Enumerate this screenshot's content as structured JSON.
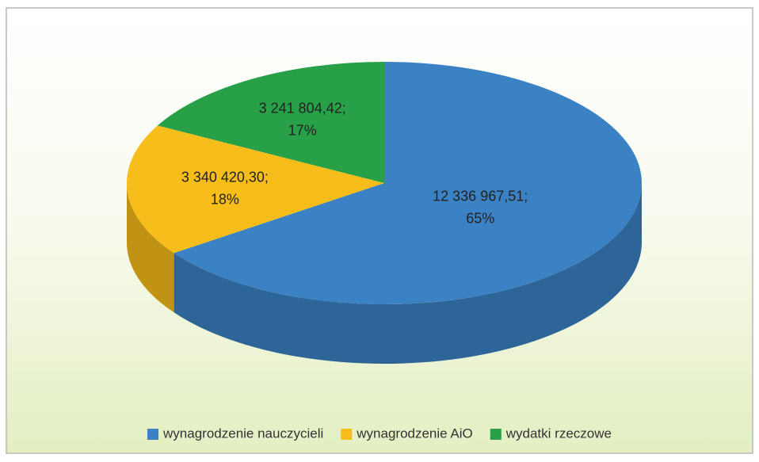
{
  "chart_data": {
    "type": "pie",
    "categories": [
      "wynagrodzenie nauczycieli",
      "wynagrodzenie AiO",
      "wydatki rzeczowe"
    ],
    "values": [
      12336967.51,
      3340420.3,
      3241804.42
    ],
    "value_labels": [
      "12 336 967,51;",
      "3 340 420,30;",
      "3 241 804,42;"
    ],
    "percentages": [
      65,
      18,
      17
    ],
    "percentage_labels": [
      "65%",
      "18%",
      "17%"
    ],
    "colors": [
      "#3b82c4",
      "#f7bd1b",
      "#27a047"
    ],
    "legend": "bottom"
  }
}
